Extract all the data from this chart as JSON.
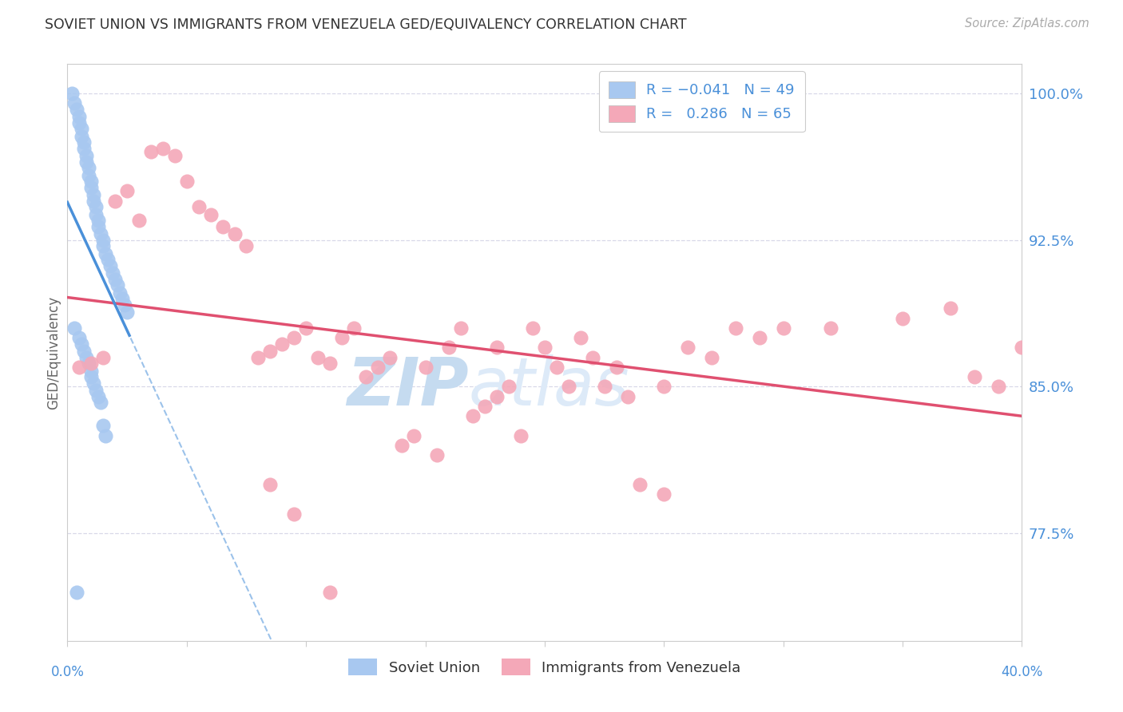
{
  "title": "SOVIET UNION VS IMMIGRANTS FROM VENEZUELA GED/EQUIVALENCY CORRELATION CHART",
  "source": "Source: ZipAtlas.com",
  "ylabel_label": "GED/Equivalency",
  "xmin": 0.0,
  "xmax": 40.0,
  "ymin": 72.0,
  "ymax": 101.5,
  "soviet_color": "#a8c8f0",
  "venezuela_color": "#f4a8b8",
  "trendline_soviet_color": "#4a90d9",
  "trendline_venezuela_color": "#e05070",
  "background_color": "#ffffff",
  "grid_color": "#d8d8e8",
  "axis_color": "#cccccc",
  "title_color": "#333333",
  "label_color": "#4a90d9",
  "watermark_zip_color": "#c8dff0",
  "watermark_atlas_color": "#dde8f5",
  "su_x": [
    0.2,
    0.3,
    0.4,
    0.5,
    0.5,
    0.6,
    0.6,
    0.7,
    0.7,
    0.8,
    0.8,
    0.9,
    0.9,
    1.0,
    1.0,
    1.1,
    1.1,
    1.2,
    1.2,
    1.3,
    1.3,
    1.4,
    1.5,
    1.5,
    1.6,
    1.7,
    1.8,
    1.9,
    2.0,
    2.1,
    2.2,
    2.3,
    2.4,
    2.5,
    0.3,
    0.5,
    0.6,
    0.7,
    0.8,
    0.9,
    1.0,
    1.0,
    1.1,
    1.2,
    1.3,
    1.4,
    1.5,
    1.6,
    0.4
  ],
  "su_y": [
    100.0,
    99.5,
    99.2,
    98.8,
    98.5,
    98.2,
    97.8,
    97.5,
    97.2,
    96.8,
    96.5,
    96.2,
    95.8,
    95.5,
    95.2,
    94.8,
    94.5,
    94.2,
    93.8,
    93.5,
    93.2,
    92.8,
    92.5,
    92.2,
    91.8,
    91.5,
    91.2,
    90.8,
    90.5,
    90.2,
    89.8,
    89.5,
    89.2,
    88.8,
    88.0,
    87.5,
    87.2,
    86.8,
    86.5,
    86.2,
    85.8,
    85.5,
    85.2,
    84.8,
    84.5,
    84.2,
    83.0,
    82.5,
    74.5
  ],
  "vz_x": [
    0.5,
    1.0,
    1.5,
    2.0,
    2.5,
    3.0,
    3.5,
    4.0,
    4.5,
    5.0,
    5.5,
    6.0,
    6.5,
    7.0,
    7.5,
    8.0,
    8.5,
    9.0,
    9.5,
    10.0,
    10.5,
    11.0,
    11.5,
    12.0,
    12.5,
    13.0,
    13.5,
    14.0,
    14.5,
    15.0,
    15.5,
    16.0,
    16.5,
    17.0,
    17.5,
    18.0,
    18.5,
    19.0,
    19.5,
    20.0,
    20.5,
    21.0,
    21.5,
    22.0,
    22.5,
    23.0,
    23.5,
    24.0,
    25.0,
    26.0,
    27.0,
    28.0,
    29.0,
    30.0,
    32.0,
    35.0,
    37.0,
    38.0,
    39.0,
    40.0,
    8.5,
    9.5,
    11.0,
    18.0,
    25.0
  ],
  "vz_y": [
    86.0,
    86.2,
    86.5,
    94.5,
    95.0,
    93.5,
    97.0,
    97.2,
    96.8,
    95.5,
    94.2,
    93.8,
    93.2,
    92.8,
    92.2,
    86.5,
    86.8,
    87.2,
    87.5,
    88.0,
    86.5,
    86.2,
    87.5,
    88.0,
    85.5,
    86.0,
    86.5,
    82.0,
    82.5,
    86.0,
    81.5,
    87.0,
    88.0,
    83.5,
    84.0,
    84.5,
    85.0,
    82.5,
    88.0,
    87.0,
    86.0,
    85.0,
    87.5,
    86.5,
    85.0,
    86.0,
    84.5,
    80.0,
    79.5,
    87.0,
    86.5,
    88.0,
    87.5,
    88.0,
    88.0,
    88.5,
    89.0,
    85.5,
    85.0,
    87.0,
    80.0,
    78.5,
    74.5,
    87.0,
    85.0
  ],
  "y_ticks": [
    77.5,
    85.0,
    92.5,
    100.0
  ],
  "legend_line1": "R = -0.041   N = 49",
  "legend_line2": "R =  0.286   N = 65"
}
